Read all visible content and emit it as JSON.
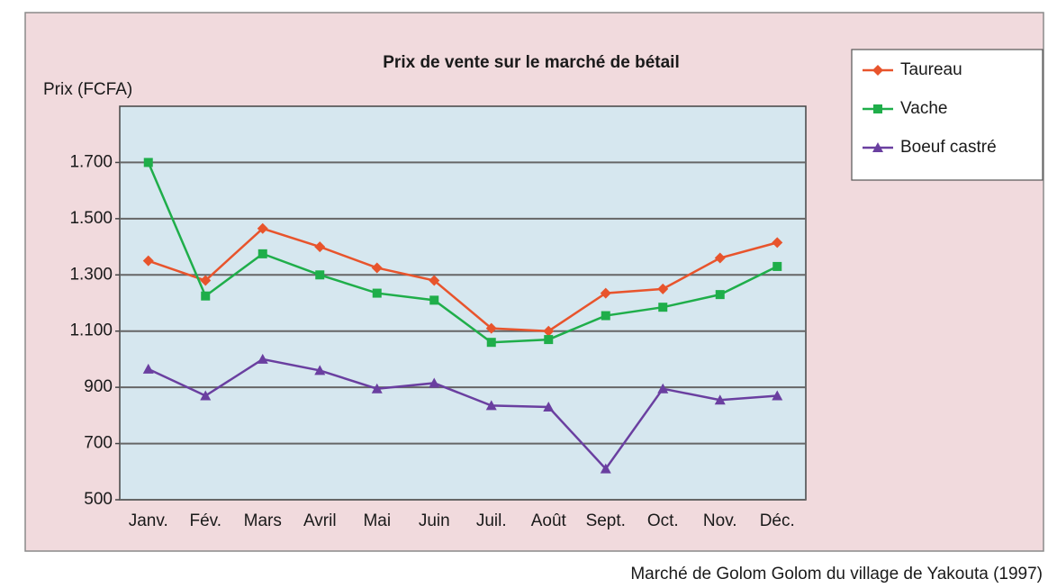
{
  "chart_data": {
    "type": "line",
    "title": "Prix de vente sur le marché de bétail",
    "y_label": "Prix (FCFA)",
    "source": "Marché de Golom Golom du village de Yakouta (1997)",
    "categories": [
      "Janv.",
      "Fév.",
      "Mars",
      "Avril",
      "Mai",
      "Juin",
      "Juil.",
      "Août",
      "Sept.",
      "Oct.",
      "Nov.",
      "Déc."
    ],
    "series": [
      {
        "name": "Taureau",
        "color": "#e8542c",
        "marker": "diamond",
        "values": [
          1350,
          1280,
          1465,
          1400,
          1325,
          1280,
          1110,
          1100,
          1235,
          1250,
          1360,
          1415
        ]
      },
      {
        "name": "Vache",
        "color": "#1fae4a",
        "marker": "square",
        "values": [
          1700,
          1225,
          1375,
          1300,
          1235,
          1210,
          1060,
          1070,
          1155,
          1185,
          1230,
          1330
        ]
      },
      {
        "name": "Boeuf castré",
        "color": "#6a3fa0",
        "marker": "triangle",
        "values": [
          965,
          870,
          1000,
          960,
          895,
          915,
          835,
          830,
          610,
          895,
          855,
          870
        ]
      }
    ],
    "ylim": [
      500,
      1900
    ],
    "yticks": [
      500,
      700,
      900,
      {
        "value": 1100,
        "label": "1.100"
      },
      {
        "value": 1300,
        "label": "1.300"
      },
      {
        "value": 1500,
        "label": "1.500"
      },
      {
        "value": 1700,
        "label": "1.700"
      }
    ],
    "grid": true,
    "legend": "right"
  }
}
